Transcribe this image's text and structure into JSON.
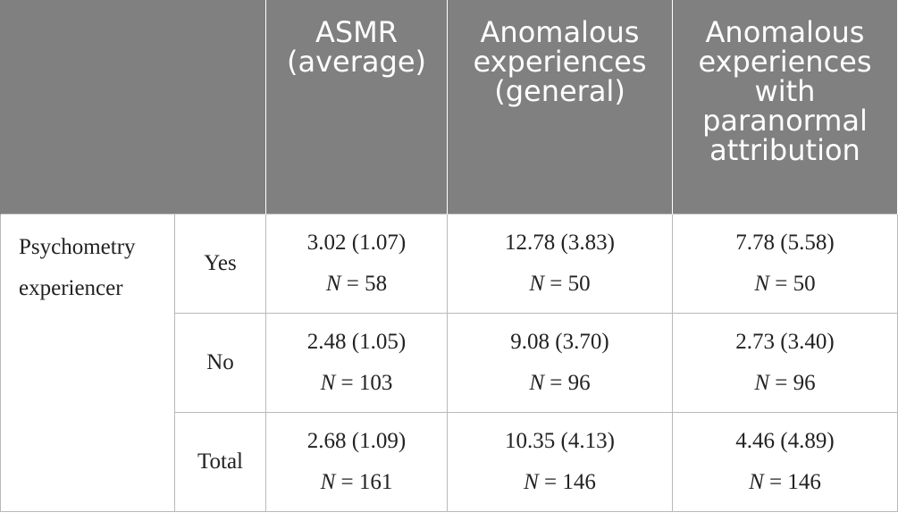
{
  "header": {
    "empty": "",
    "columns": [
      "ASMR (average)",
      "Anomalous experiences (general)",
      "Anomalous experiences with paranormal attribution"
    ]
  },
  "group_label": "Psychometry experiencer",
  "n_symbol": "N",
  "rows": [
    {
      "level": "Yes",
      "cells": [
        {
          "value": "3.02 (1.07)",
          "n": "= 58"
        },
        {
          "value": "12.78 (3.83)",
          "n": "= 50"
        },
        {
          "value": "7.78 (5.58)",
          "n": "= 50"
        }
      ]
    },
    {
      "level": "No",
      "cells": [
        {
          "value": "2.48 (1.05)",
          "n": "= 103"
        },
        {
          "value": "9.08 (3.70)",
          "n": "= 96"
        },
        {
          "value": "2.73 (3.40)",
          "n": "= 96"
        }
      ]
    },
    {
      "level": "Total",
      "cells": [
        {
          "value": "2.68 (1.09)",
          "n": "= 161"
        },
        {
          "value": "10.35 (4.13)",
          "n": "= 146"
        },
        {
          "value": "4.46 (4.89)",
          "n": "= 146"
        }
      ]
    }
  ]
}
